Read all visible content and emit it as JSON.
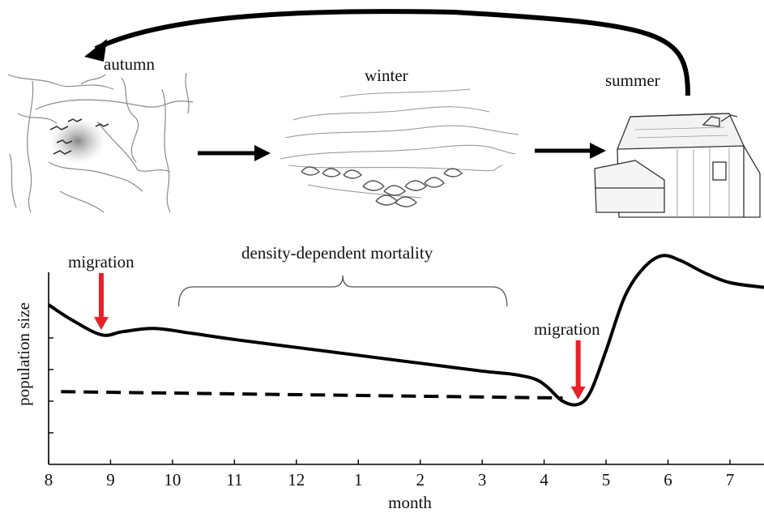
{
  "stages": [
    {
      "name": "autumn",
      "icon": "cave-with-bats-sketch"
    },
    {
      "name": "winter",
      "icon": "hibernating-bats-cluster-sketch"
    },
    {
      "name": "summer",
      "icon": "barn-sketch"
    }
  ],
  "annotations": {
    "migration_1": "migration",
    "migration_2": "migration",
    "density_bracket": "density-dependent mortality"
  },
  "colors": {
    "curve": "#000000",
    "migration_arrow": "#e8202a",
    "sketch": "#8a8a8a"
  },
  "chart_data": {
    "type": "line",
    "xlabel": "month",
    "ylabel": "population size",
    "x_tick_labels": [
      "8",
      "9",
      "10",
      "11",
      "12",
      "1",
      "2",
      "3",
      "4",
      "5",
      "6",
      "7"
    ],
    "x_positions": [
      8,
      9,
      10,
      11,
      12,
      13,
      14,
      15,
      16,
      17,
      18,
      19
    ],
    "xlim": [
      8,
      19.55
    ],
    "ylim": [
      0,
      7
    ],
    "y_ticks": [
      1,
      2,
      3,
      4,
      5
    ],
    "y_tick_labels_shown": false,
    "grid": false,
    "series": [
      {
        "style": "solid",
        "points": [
          [
            8.0,
            5.05
          ],
          [
            8.35,
            4.6
          ],
          [
            8.85,
            4.1
          ],
          [
            9.2,
            4.2
          ],
          [
            9.7,
            4.3
          ],
          [
            10.3,
            4.15
          ],
          [
            11.0,
            3.95
          ],
          [
            12.0,
            3.7
          ],
          [
            13.0,
            3.45
          ],
          [
            14.0,
            3.2
          ],
          [
            15.0,
            2.95
          ],
          [
            15.5,
            2.85
          ],
          [
            15.85,
            2.7
          ],
          [
            16.05,
            2.45
          ],
          [
            16.3,
            2.0
          ],
          [
            16.55,
            1.9
          ],
          [
            16.75,
            2.3
          ],
          [
            17.0,
            3.6
          ],
          [
            17.3,
            5.3
          ],
          [
            17.6,
            6.2
          ],
          [
            17.9,
            6.6
          ],
          [
            18.2,
            6.45
          ],
          [
            18.6,
            6.05
          ],
          [
            19.0,
            5.75
          ],
          [
            19.55,
            5.6
          ]
        ]
      },
      {
        "style": "dashed",
        "points": [
          [
            8.2,
            2.3
          ],
          [
            16.3,
            2.1
          ]
        ]
      }
    ],
    "markers": [
      {
        "label": "migration",
        "x": 8.85,
        "at_value": 4.1
      },
      {
        "label": "migration",
        "x": 16.55,
        "at_value": 1.9
      }
    ],
    "brackets": [
      {
        "label": "density-dependent mortality",
        "x_range": [
          10.1,
          15.4
        ]
      }
    ]
  }
}
